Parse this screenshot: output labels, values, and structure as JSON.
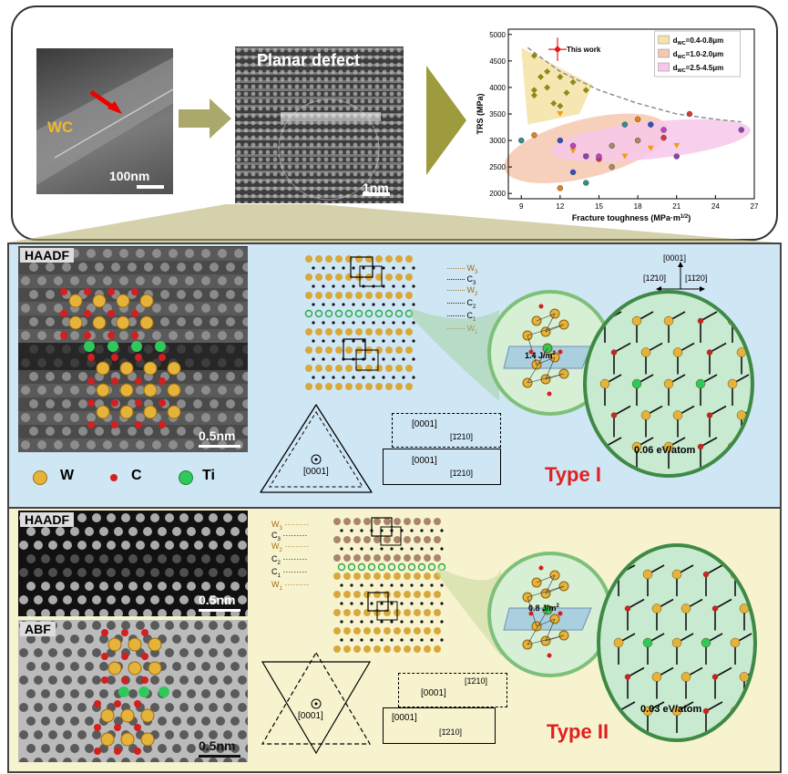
{
  "top": {
    "sem_label": "WC",
    "sem_scale": "100nm",
    "hrtem_title": "Planar defect",
    "hrtem_scale": "1nm"
  },
  "chart_data": {
    "type": "scatter",
    "xlabel": "Fracture toughness (MPa·m",
    "xlabel_sup": "1/2",
    "xlabel_end": ")",
    "ylabel": "TRS (MPa)",
    "xlim": [
      8,
      27
    ],
    "ylim": [
      1900,
      5100
    ],
    "xticks": [
      9,
      12,
      15,
      18,
      21,
      24,
      27
    ],
    "yticks": [
      2000,
      2500,
      3000,
      3500,
      4000,
      4500,
      5000
    ],
    "legend": [
      {
        "label": "This work",
        "color": "#e41a1c"
      },
      {
        "label": "d",
        "sub": "WC",
        "rest": "=0.4-0.8μm",
        "color": "#f5e3a8"
      },
      {
        "label": "d",
        "sub": "WC",
        "rest": "=1.0-2.0μm",
        "color": "#f6c8b0"
      },
      {
        "label": "d",
        "sub": "WC",
        "rest": "=2.5-4.5μm",
        "color": "#f7c8ea"
      }
    ],
    "this_work": {
      "x": 11.8,
      "y": 4720,
      "xerr": 0.7,
      "yerr": 220
    },
    "series": [
      {
        "name": "fine",
        "color": "#8b8b1a",
        "marker": "diamond",
        "points": [
          [
            10,
            4600
          ],
          [
            10.5,
            4200
          ],
          [
            11,
            4300
          ],
          [
            11,
            4000
          ],
          [
            12,
            4200
          ],
          [
            12.5,
            3900
          ],
          [
            13,
            4100
          ],
          [
            10,
            3950
          ],
          [
            11.5,
            3700
          ],
          [
            14,
            3950
          ],
          [
            10,
            3850
          ],
          [
            12,
            3650
          ]
        ]
      },
      {
        "name": "medium",
        "color": "#f39c12",
        "marker": "tri",
        "points": [
          [
            12,
            3500
          ],
          [
            13,
            2800
          ],
          [
            14,
            2700
          ],
          [
            17,
            2700
          ],
          [
            19,
            2850
          ],
          [
            21,
            2900
          ]
        ]
      },
      {
        "name": "coarse",
        "color": "#8e44ad",
        "marker": "circle",
        "points": [
          [
            9,
            3000
          ],
          [
            10,
            3100
          ],
          [
            12,
            3000
          ],
          [
            13,
            2900
          ],
          [
            14,
            2700
          ],
          [
            15,
            2650
          ],
          [
            16,
            2900
          ],
          [
            17,
            3300
          ],
          [
            18,
            3400
          ],
          [
            19,
            3300
          ],
          [
            20,
            3200
          ],
          [
            21,
            2700
          ],
          [
            22,
            3500
          ],
          [
            16,
            2500
          ],
          [
            14,
            2200
          ],
          [
            12,
            2100
          ],
          [
            13,
            2400
          ],
          [
            15,
            2700
          ],
          [
            26,
            3200
          ],
          [
            20,
            3050
          ],
          [
            18,
            3000
          ]
        ]
      }
    ],
    "trend": [
      [
        9.5,
        4750
      ],
      [
        12,
        4300
      ],
      [
        15,
        3950
      ],
      [
        18,
        3700
      ],
      [
        21,
        3500
      ],
      [
        24,
        3400
      ],
      [
        26,
        3350
      ]
    ]
  },
  "typeI": {
    "haadf_label": "HAADF",
    "scale": "0.5nm",
    "layers": [
      "W",
      "C",
      "W",
      "C",
      "C",
      "W"
    ],
    "layer_subs": [
      "3",
      "3",
      "2",
      "2",
      "1",
      "1"
    ],
    "energy": "1.4 J/m",
    "energy_sup": "2",
    "atom_energy": "0.06 eV/atom",
    "dir_top": "[0001]",
    "dir_left": "[12̄10]",
    "dir_right": "[11̄20]",
    "tri_label": "[0001]",
    "box1_a": "[0001]",
    "box1_b": "[1̄210]",
    "box2_a": "[0001]",
    "box2_b": "[1̄210]",
    "type_label": "Type I",
    "legend": [
      {
        "label": "W",
        "color": "#e6b33a"
      },
      {
        "label": "C",
        "color": "#d21f1f"
      },
      {
        "label": "Ti",
        "color": "#2ec95a"
      }
    ]
  },
  "typeII": {
    "haadf_label": "HAADF",
    "abf_label": "ABF",
    "scale1": "0.5nm",
    "scale2": "0.5nm",
    "layers": [
      "W",
      "C",
      "W",
      "C",
      "C",
      "W"
    ],
    "layer_subs": [
      "3",
      "3",
      "2",
      "2",
      "1",
      "1"
    ],
    "energy": "0.8 J/m",
    "energy_sup": "2",
    "atom_energy": "0.03 eV/atom",
    "tri_label": "[0001]",
    "box1_a": "[0001]",
    "box1_b": "[1̄210]",
    "box2_a": "[0001]",
    "box2_b": "[1̄210]",
    "type_label": "Type II"
  }
}
